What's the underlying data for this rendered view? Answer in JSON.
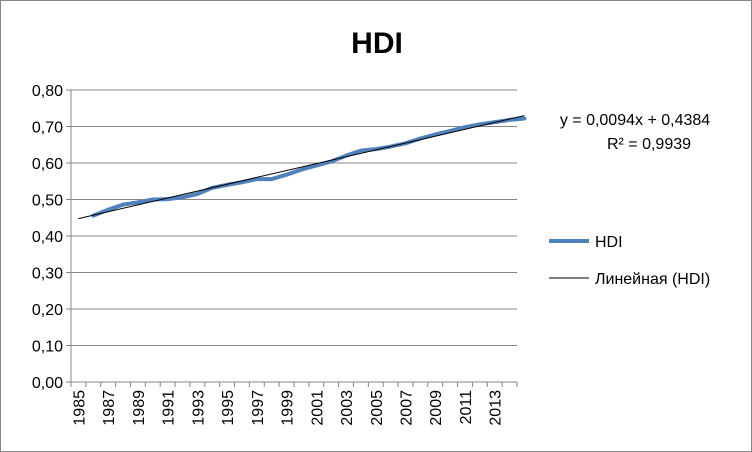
{
  "chart_data": {
    "type": "line",
    "title": "HDI",
    "xlabel": "",
    "ylabel": "",
    "xlim": [
      1985,
      2015
    ],
    "ylim": [
      0,
      0.8
    ],
    "y_ticks": [
      "0,00",
      "0,10",
      "0,20",
      "0,30",
      "0,40",
      "0,50",
      "0,60",
      "0,70",
      "0,80"
    ],
    "x_ticks": [
      "1985",
      "1987",
      "1989",
      "1991",
      "1993",
      "1995",
      "1997",
      "1999",
      "2001",
      "2003",
      "2005",
      "2007",
      "2009",
      "2011",
      "2013"
    ],
    "grid": true,
    "legend_position": "right",
    "series": [
      {
        "name": "HDI",
        "color": "#4F81BD",
        "x": [
          1986,
          1987,
          1988,
          1989,
          1990,
          1991,
          1992,
          1993,
          1994,
          1995,
          1996,
          1997,
          1998,
          1999,
          2000,
          2001,
          2002,
          2003,
          2004,
          2005,
          2006,
          2007,
          2008,
          2009,
          2010,
          2011,
          2012,
          2013,
          2014,
          2015
        ],
        "values": [
          0.456,
          0.472,
          0.486,
          0.492,
          0.5,
          0.501,
          0.506,
          0.515,
          0.532,
          0.54,
          0.547,
          0.556,
          0.556,
          0.568,
          0.582,
          0.593,
          0.604,
          0.62,
          0.634,
          0.638,
          0.645,
          0.654,
          0.667,
          0.678,
          0.688,
          0.698,
          0.706,
          0.712,
          0.718,
          0.722
        ]
      },
      {
        "name": "Линейная (HDI)",
        "type": "trendline",
        "color": "#000000",
        "x": [
          1985,
          2015
        ],
        "values": [
          0.4478,
          0.7298
        ]
      }
    ],
    "trendline": {
      "equation": "y = 0,0094x + 0,4384",
      "r_squared": "R² = 0,9939"
    }
  }
}
